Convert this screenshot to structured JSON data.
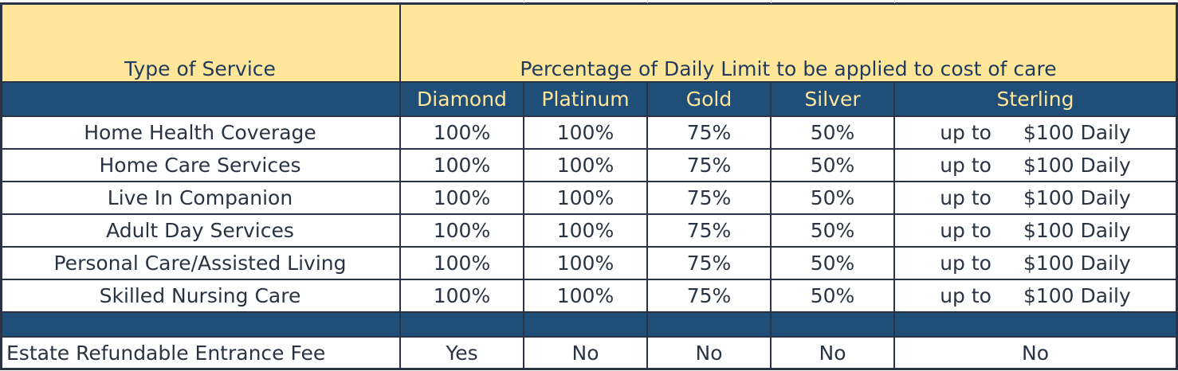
{
  "header": {
    "type_of_service": "Type of Service",
    "percentage_title": "Percentage of Daily Limit to be applied to cost of care",
    "tiers": [
      "Diamond",
      "Platinum",
      "Gold",
      "Silver",
      "Sterling"
    ]
  },
  "rows": [
    {
      "service": "Home Health Coverage",
      "values": [
        "100%",
        "100%",
        "75%",
        "50%"
      ],
      "sterling_prefix": "up to",
      "sterling_amount": "$100 Daily"
    },
    {
      "service": "Home Care Services",
      "values": [
        "100%",
        "100%",
        "75%",
        "50%"
      ],
      "sterling_prefix": "up to",
      "sterling_amount": "$100 Daily"
    },
    {
      "service": "Live In Companion",
      "values": [
        "100%",
        "100%",
        "75%",
        "50%"
      ],
      "sterling_prefix": "up to",
      "sterling_amount": "$100 Daily"
    },
    {
      "service": "Adult Day Services",
      "values": [
        "100%",
        "100%",
        "75%",
        "50%"
      ],
      "sterling_prefix": "up to",
      "sterling_amount": "$100 Daily"
    },
    {
      "service": "Personal Care/Assisted Living",
      "values": [
        "100%",
        "100%",
        "75%",
        "50%"
      ],
      "sterling_prefix": "up to",
      "sterling_amount": "$100 Daily"
    },
    {
      "service": "Skilled Nursing Care",
      "values": [
        "100%",
        "100%",
        "75%",
        "50%"
      ],
      "sterling_prefix": "up to",
      "sterling_amount": "$100 Daily"
    }
  ],
  "refund_row": {
    "label": "Estate Refundable Entrance Fee",
    "values": [
      "Yes",
      "No",
      "No",
      "No",
      "No"
    ]
  },
  "colors": {
    "header_yellow": "#ffe699",
    "header_blue": "#1f4e79",
    "grid_line": "#2a3344"
  }
}
